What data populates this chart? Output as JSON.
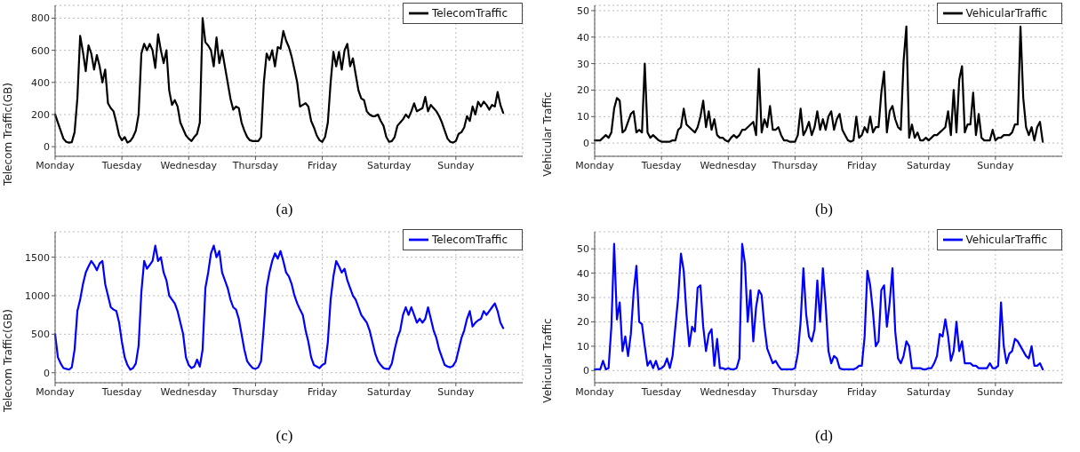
{
  "chart_data": [
    {
      "type": "line",
      "ylabel": "Telecom Traffic(GB)",
      "annotations": [
        "(a)"
      ],
      "grid": true,
      "legend": "top right",
      "line_style": "solid",
      "ylim": [
        -60,
        880
      ],
      "yticks": [
        0,
        200,
        400,
        600,
        800
      ],
      "categories": [
        "Monday",
        null,
        null,
        null,
        null,
        null,
        null,
        null,
        null,
        null,
        null,
        null,
        null,
        null,
        null,
        null,
        null,
        null,
        null,
        null,
        null,
        null,
        null,
        null,
        "Tuesday",
        null,
        null,
        null,
        null,
        null,
        null,
        null,
        null,
        null,
        null,
        null,
        null,
        null,
        null,
        null,
        null,
        null,
        null,
        null,
        null,
        null,
        null,
        null,
        "Wednesday",
        null,
        null,
        null,
        null,
        null,
        null,
        null,
        null,
        null,
        null,
        null,
        null,
        null,
        null,
        null,
        null,
        null,
        null,
        null,
        null,
        null,
        null,
        null,
        "Thursday",
        null,
        null,
        null,
        null,
        null,
        null,
        null,
        null,
        null,
        null,
        null,
        null,
        null,
        null,
        null,
        null,
        null,
        null,
        null,
        null,
        null,
        null,
        null,
        "Friday",
        null,
        null,
        null,
        null,
        null,
        null,
        null,
        null,
        null,
        null,
        null,
        null,
        null,
        null,
        null,
        null,
        null,
        null,
        null,
        null,
        null,
        null,
        null,
        "Saturday",
        null,
        null,
        null,
        null,
        null,
        null,
        null,
        null,
        null,
        null,
        null,
        null,
        null,
        null,
        null,
        null,
        null,
        null,
        null,
        null,
        null,
        null,
        null,
        "Sunday",
        null,
        null,
        null,
        null,
        null,
        null,
        null,
        null,
        null,
        null,
        null,
        null,
        null,
        null,
        null,
        null,
        null,
        null,
        null,
        null,
        null,
        null,
        null,
        null
      ],
      "series": [
        {
          "name": "TelecomTraffic",
          "color": "#000000",
          "values": [
            200,
            150,
            100,
            50,
            30,
            25,
            28,
            90,
            300,
            690,
            590,
            470,
            630,
            580,
            480,
            570,
            500,
            400,
            480,
            270,
            240,
            220,
            150,
            70,
            40,
            60,
            25,
            35,
            60,
            100,
            200,
            580,
            640,
            600,
            640,
            600,
            490,
            700,
            600,
            520,
            600,
            350,
            260,
            290,
            250,
            150,
            110,
            70,
            50,
            35,
            60,
            80,
            150,
            800,
            650,
            630,
            600,
            500,
            680,
            520,
            600,
            500,
            400,
            300,
            230,
            250,
            240,
            150,
            100,
            60,
            40,
            35,
            35,
            35,
            60,
            400,
            580,
            540,
            600,
            500,
            620,
            610,
            720,
            660,
            620,
            560,
            480,
            400,
            250,
            260,
            270,
            250,
            160,
            120,
            70,
            40,
            30,
            60,
            150,
            400,
            590,
            500,
            590,
            480,
            600,
            640,
            500,
            550,
            450,
            350,
            300,
            290,
            220,
            200,
            190,
            190,
            200,
            160,
            130,
            60,
            30,
            35,
            60,
            130,
            150,
            170,
            200,
            180,
            220,
            270,
            220,
            230,
            240,
            310,
            220,
            260,
            240,
            220,
            190,
            150,
            100,
            50,
            30,
            25,
            35,
            80,
            90,
            120,
            190,
            160,
            250,
            200,
            280,
            250,
            280,
            260,
            230,
            260,
            250,
            340,
            260,
            210,
            null,
            null,
            null,
            null,
            null,
            null,
            null
          ]
        }
      ]
    },
    {
      "type": "line",
      "ylabel": "Vehicular Traffic",
      "annotations": [
        "(b)"
      ],
      "grid": true,
      "legend": "top right",
      "line_style": "solid",
      "ylim": [
        -5,
        52
      ],
      "yticks": [
        0,
        10,
        20,
        30,
        40,
        50
      ],
      "categories": [
        "Monday",
        null,
        null,
        null,
        null,
        null,
        null,
        null,
        null,
        null,
        null,
        null,
        null,
        null,
        null,
        null,
        null,
        null,
        null,
        null,
        null,
        null,
        null,
        null,
        "Tuesday",
        null,
        null,
        null,
        null,
        null,
        null,
        null,
        null,
        null,
        null,
        null,
        null,
        null,
        null,
        null,
        null,
        null,
        null,
        null,
        null,
        null,
        null,
        null,
        "Wednesday",
        null,
        null,
        null,
        null,
        null,
        null,
        null,
        null,
        null,
        null,
        null,
        null,
        null,
        null,
        null,
        null,
        null,
        null,
        null,
        null,
        null,
        null,
        null,
        "Thursday",
        null,
        null,
        null,
        null,
        null,
        null,
        null,
        null,
        null,
        null,
        null,
        null,
        null,
        null,
        null,
        null,
        null,
        null,
        null,
        null,
        null,
        null,
        null,
        "Friday",
        null,
        null,
        null,
        null,
        null,
        null,
        null,
        null,
        null,
        null,
        null,
        null,
        null,
        null,
        null,
        null,
        null,
        null,
        null,
        null,
        null,
        null,
        null,
        "Saturday",
        null,
        null,
        null,
        null,
        null,
        null,
        null,
        null,
        null,
        null,
        null,
        null,
        null,
        null,
        null,
        null,
        null,
        null,
        null,
        null,
        null,
        null,
        null,
        "Sunday",
        null,
        null,
        null,
        null,
        null,
        null,
        null,
        null,
        null,
        null,
        null,
        null,
        null,
        null,
        null,
        null,
        null,
        null,
        null,
        null,
        null,
        null,
        null,
        null
      ],
      "series": [
        {
          "name": "VehicularTraffic",
          "color": "#000000",
          "values": [
            1,
            1,
            1,
            2,
            3,
            2,
            4,
            13,
            17,
            16,
            4,
            5,
            8,
            11,
            12,
            4,
            5,
            4,
            30,
            4,
            2,
            3,
            2,
            1,
            0.5,
            0.5,
            0.5,
            0.5,
            1,
            1,
            5,
            6,
            13,
            7,
            6,
            5,
            4,
            6,
            10,
            16,
            6,
            12,
            5,
            9,
            3,
            2,
            2,
            1,
            0.5,
            2,
            3,
            2,
            3,
            5,
            5,
            6,
            7,
            8,
            3,
            28,
            4,
            9,
            6,
            14,
            5,
            5,
            6,
            3,
            1,
            1,
            0.5,
            0.5,
            0.5,
            3,
            13,
            3,
            5,
            8,
            3,
            6,
            12,
            5,
            9,
            5,
            10,
            12,
            5,
            9,
            11,
            5,
            3,
            1,
            0.5,
            1,
            10,
            2,
            3,
            6,
            4,
            10,
            4,
            6,
            6,
            19,
            27,
            4,
            12,
            14,
            9,
            6,
            5,
            31,
            44,
            2,
            7,
            2,
            4,
            1,
            1,
            2,
            1,
            2,
            3,
            3,
            4,
            5,
            6,
            12,
            3,
            20,
            4,
            24,
            29,
            4,
            7,
            7,
            19,
            3,
            11,
            2,
            1,
            1,
            1,
            5,
            1,
            2,
            2,
            3,
            3,
            3,
            4,
            7,
            7,
            44,
            17,
            6,
            3,
            6,
            1,
            6,
            8,
            0.5,
            null,
            null,
            null,
            null,
            null,
            null,
            null
          ]
        }
      ]
    },
    {
      "type": "line",
      "ylabel": "Telecom Traffic(GB)",
      "annotations": [
        "(c)"
      ],
      "grid": true,
      "legend": "top right",
      "line_style": "solid",
      "ylim": [
        -130,
        1830
      ],
      "yticks": [
        0,
        500,
        1000,
        1500
      ],
      "categories": [
        "Monday",
        null,
        null,
        null,
        null,
        null,
        null,
        null,
        null,
        null,
        null,
        null,
        null,
        null,
        null,
        null,
        null,
        null,
        null,
        null,
        null,
        null,
        null,
        null,
        "Tuesday",
        null,
        null,
        null,
        null,
        null,
        null,
        null,
        null,
        null,
        null,
        null,
        null,
        null,
        null,
        null,
        null,
        null,
        null,
        null,
        null,
        null,
        null,
        null,
        "Wednesday",
        null,
        null,
        null,
        null,
        null,
        null,
        null,
        null,
        null,
        null,
        null,
        null,
        null,
        null,
        null,
        null,
        null,
        null,
        null,
        null,
        null,
        null,
        null,
        "Thursday",
        null,
        null,
        null,
        null,
        null,
        null,
        null,
        null,
        null,
        null,
        null,
        null,
        null,
        null,
        null,
        null,
        null,
        null,
        null,
        null,
        null,
        null,
        null,
        "Friday",
        null,
        null,
        null,
        null,
        null,
        null,
        null,
        null,
        null,
        null,
        null,
        null,
        null,
        null,
        null,
        null,
        null,
        null,
        null,
        null,
        null,
        null,
        null,
        "Saturday",
        null,
        null,
        null,
        null,
        null,
        null,
        null,
        null,
        null,
        null,
        null,
        null,
        null,
        null,
        null,
        null,
        null,
        null,
        null,
        null,
        null,
        null,
        null,
        "Sunday",
        null,
        null,
        null,
        null,
        null,
        null,
        null,
        null,
        null,
        null,
        null,
        null,
        null,
        null,
        null,
        null,
        null,
        null,
        null,
        null,
        null,
        null,
        null,
        null
      ],
      "series": [
        {
          "name": "TelecomTraffic",
          "color": "#0000ff",
          "values": [
            500,
            200,
            120,
            60,
            50,
            40,
            70,
            300,
            800,
            950,
            1150,
            1300,
            1380,
            1450,
            1400,
            1330,
            1420,
            1450,
            1150,
            1000,
            850,
            820,
            800,
            650,
            400,
            200,
            100,
            40,
            60,
            120,
            350,
            1050,
            1450,
            1350,
            1400,
            1450,
            1650,
            1450,
            1500,
            1300,
            1200,
            1000,
            950,
            900,
            800,
            650,
            500,
            200,
            100,
            60,
            80,
            170,
            80,
            300,
            1100,
            1300,
            1550,
            1650,
            1500,
            1580,
            1300,
            1200,
            1100,
            950,
            850,
            820,
            700,
            500,
            300,
            150,
            100,
            60,
            50,
            70,
            150,
            600,
            1100,
            1300,
            1450,
            1550,
            1480,
            1580,
            1450,
            1300,
            1250,
            1150,
            1000,
            900,
            820,
            750,
            550,
            400,
            200,
            100,
            80,
            60,
            100,
            120,
            400,
            950,
            1250,
            1450,
            1380,
            1300,
            1350,
            1200,
            1100,
            1000,
            950,
            850,
            750,
            700,
            650,
            550,
            400,
            250,
            150,
            100,
            60,
            50,
            50,
            120,
            300,
            450,
            550,
            750,
            850,
            750,
            850,
            750,
            650,
            700,
            650,
            700,
            850,
            700,
            550,
            450,
            300,
            200,
            100,
            80,
            70,
            90,
            150,
            300,
            450,
            550,
            700,
            800,
            600,
            650,
            680,
            700,
            800,
            750,
            800,
            850,
            900,
            800,
            650,
            580,
            null,
            null,
            null,
            null,
            null,
            null,
            null
          ]
        }
      ]
    },
    {
      "type": "line",
      "ylabel": "Vehicular Traffic",
      "annotations": [
        "(d)"
      ],
      "grid": true,
      "legend": "top right",
      "line_style": "solid",
      "ylim": [
        -5,
        57
      ],
      "yticks": [
        0,
        10,
        20,
        30,
        40,
        50
      ],
      "categories": [
        "Monday",
        null,
        null,
        null,
        null,
        null,
        null,
        null,
        null,
        null,
        null,
        null,
        null,
        null,
        null,
        null,
        null,
        null,
        null,
        null,
        null,
        null,
        null,
        null,
        "Tuesday",
        null,
        null,
        null,
        null,
        null,
        null,
        null,
        null,
        null,
        null,
        null,
        null,
        null,
        null,
        null,
        null,
        null,
        null,
        null,
        null,
        null,
        null,
        null,
        "Wednesday",
        null,
        null,
        null,
        null,
        null,
        null,
        null,
        null,
        null,
        null,
        null,
        null,
        null,
        null,
        null,
        null,
        null,
        null,
        null,
        null,
        null,
        null,
        null,
        "Thursday",
        null,
        null,
        null,
        null,
        null,
        null,
        null,
        null,
        null,
        null,
        null,
        null,
        null,
        null,
        null,
        null,
        null,
        null,
        null,
        null,
        null,
        null,
        null,
        "Friday",
        null,
        null,
        null,
        null,
        null,
        null,
        null,
        null,
        null,
        null,
        null,
        null,
        null,
        null,
        null,
        null,
        null,
        null,
        null,
        null,
        null,
        null,
        null,
        "Saturday",
        null,
        null,
        null,
        null,
        null,
        null,
        null,
        null,
        null,
        null,
        null,
        null,
        null,
        null,
        null,
        null,
        null,
        null,
        null,
        null,
        null,
        null,
        null,
        "Sunday",
        null,
        null,
        null,
        null,
        null,
        null,
        null,
        null,
        null,
        null,
        null,
        null,
        null,
        null,
        null,
        null,
        null,
        null,
        null,
        null,
        null,
        null,
        null,
        null
      ],
      "series": [
        {
          "name": "VehicularTraffic",
          "color": "#0000ff",
          "values": [
            0.5,
            0.5,
            0.5,
            4,
            0.5,
            1,
            18,
            52,
            21,
            28,
            8,
            14,
            6,
            15,
            32,
            43,
            20,
            19,
            10,
            2,
            4,
            1,
            4,
            0.5,
            1,
            2,
            5,
            1,
            6,
            18,
            30,
            48,
            41,
            23,
            10,
            18,
            16,
            34,
            35,
            18,
            8,
            15,
            17,
            2,
            13,
            1,
            1,
            0.5,
            1,
            0.5,
            0.5,
            1,
            5,
            52,
            44,
            20,
            33,
            12,
            26,
            33,
            31,
            18,
            9,
            6,
            3,
            4,
            2,
            0.5,
            0.5,
            0.5,
            0.5,
            0.5,
            1,
            7,
            20,
            42,
            23,
            14,
            12,
            17,
            37,
            20,
            42,
            27,
            8,
            3,
            6,
            5,
            1,
            0.5,
            0.5,
            0.5,
            0.5,
            0.5,
            1,
            2,
            2,
            14,
            41,
            35,
            24,
            10,
            12,
            33,
            35,
            18,
            28,
            42,
            16,
            5,
            3,
            6,
            12,
            10,
            1,
            1,
            1,
            1,
            0.5,
            0.5,
            1,
            1,
            3,
            6,
            15,
            14,
            21,
            14,
            4,
            8,
            20,
            8,
            12,
            3,
            3,
            3,
            2,
            2,
            1,
            1,
            1,
            1,
            3,
            1,
            1,
            2,
            28,
            10,
            3,
            7,
            8,
            13,
            12,
            10,
            8,
            6,
            5,
            10,
            2,
            2,
            3,
            0.5,
            null,
            null,
            null,
            null,
            null,
            null,
            null
          ]
        }
      ]
    }
  ]
}
